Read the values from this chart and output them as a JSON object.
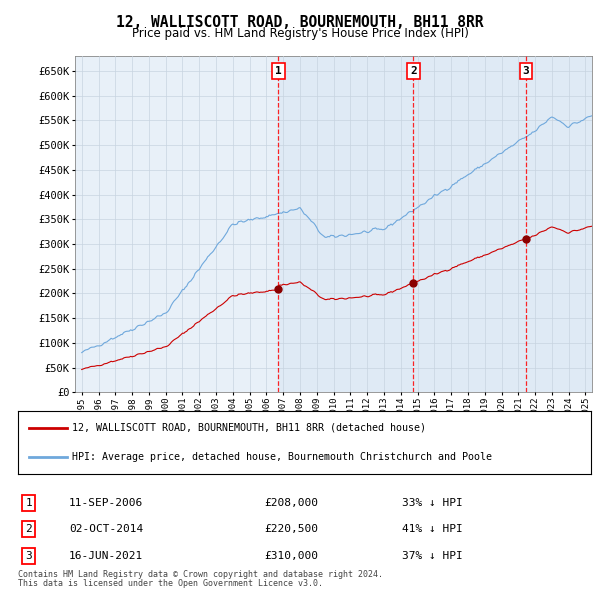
{
  "title": "12, WALLISCOTT ROAD, BOURNEMOUTH, BH11 8RR",
  "subtitle": "Price paid vs. HM Land Registry's House Price Index (HPI)",
  "legend_line1": "12, WALLISCOTT ROAD, BOURNEMOUTH, BH11 8RR (detached house)",
  "legend_line2": "HPI: Average price, detached house, Bournemouth Christchurch and Poole",
  "footer1": "Contains HM Land Registry data © Crown copyright and database right 2024.",
  "footer2": "This data is licensed under the Open Government Licence v3.0.",
  "transactions": [
    {
      "num": 1,
      "date": "11-SEP-2006",
      "price": "£208,000",
      "pct": "33% ↓ HPI",
      "year": 2006.71
    },
    {
      "num": 2,
      "date": "02-OCT-2014",
      "price": "£220,500",
      "pct": "41% ↓ HPI",
      "year": 2014.75
    },
    {
      "num": 3,
      "date": "16-JUN-2021",
      "price": "£310,000",
      "pct": "37% ↓ HPI",
      "year": 2021.46
    }
  ],
  "hpi_color": "#6fa8dc",
  "price_color": "#cc0000",
  "shade_color": "#dce8f5",
  "grid_color": "#c8d4e0",
  "bg_color": "#e8f0f8",
  "ylim": [
    0,
    680000
  ],
  "yticks": [
    0,
    50000,
    100000,
    150000,
    200000,
    250000,
    300000,
    350000,
    400000,
    450000,
    500000,
    550000,
    600000,
    650000
  ],
  "xlim_start": 1994.6,
  "xlim_end": 2025.4
}
